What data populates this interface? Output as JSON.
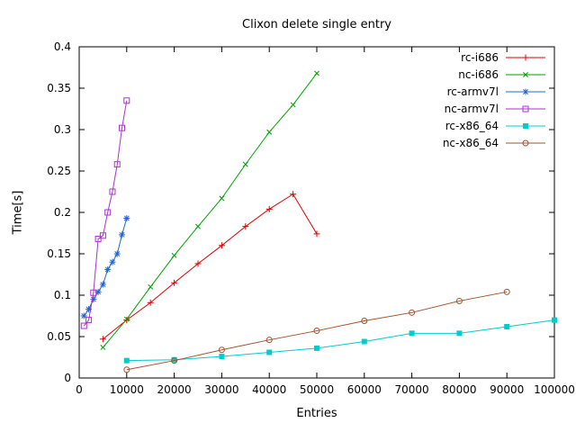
{
  "chart_data": {
    "type": "line",
    "title": "Clixon delete single entry",
    "xlabel": "Entries",
    "ylabel": "Time[s]",
    "xlim": [
      0,
      100000
    ],
    "ylim": [
      0,
      0.4
    ],
    "xticks": [
      0,
      10000,
      20000,
      30000,
      40000,
      50000,
      60000,
      70000,
      80000,
      90000,
      100000
    ],
    "yticks": [
      0,
      0.05,
      0.1,
      0.15,
      0.2,
      0.25,
      0.3,
      0.35,
      0.4
    ],
    "grid": false,
    "legend_position": "top-right",
    "series": [
      {
        "name": "rc-i686",
        "color": "#dd0000",
        "marker": "plus",
        "x": [
          5000,
          10000,
          15000,
          20000,
          25000,
          30000,
          35000,
          40000,
          45000,
          50000
        ],
        "y": [
          0.047,
          0.07,
          0.091,
          0.115,
          0.138,
          0.16,
          0.183,
          0.204,
          0.222,
          0.174
        ]
      },
      {
        "name": "nc-i686",
        "color": "#00a000",
        "marker": "cross",
        "x": [
          5000,
          10000,
          15000,
          20000,
          25000,
          30000,
          35000,
          40000,
          45000,
          50000
        ],
        "y": [
          0.037,
          0.071,
          0.11,
          0.148,
          0.183,
          0.217,
          0.258,
          0.297,
          0.33,
          0.368
        ]
      },
      {
        "name": "rc-armv7l",
        "color": "#2266cc",
        "marker": "asterisk",
        "x": [
          1000,
          2000,
          3000,
          4000,
          5000,
          6000,
          7000,
          8000,
          9000,
          10000
        ],
        "y": [
          0.075,
          0.083,
          0.095,
          0.104,
          0.113,
          0.131,
          0.14,
          0.15,
          0.173,
          0.193
        ]
      },
      {
        "name": "nc-armv7l",
        "color": "#aa33cc",
        "marker": "square-open",
        "x": [
          1000,
          2000,
          3000,
          4000,
          5000,
          6000,
          7000,
          8000,
          9000,
          10000
        ],
        "y": [
          0.063,
          0.07,
          0.103,
          0.168,
          0.172,
          0.2,
          0.225,
          0.258,
          0.302,
          0.335
        ]
      },
      {
        "name": "rc-x86_64",
        "color": "#00cccc",
        "marker": "square-filled",
        "x": [
          10000,
          20000,
          30000,
          40000,
          50000,
          60000,
          70000,
          80000,
          90000,
          100000
        ],
        "y": [
          0.021,
          0.022,
          0.026,
          0.031,
          0.036,
          0.044,
          0.054,
          0.054,
          0.062,
          0.07
        ]
      },
      {
        "name": "nc-x86_64",
        "color": "#a0522d",
        "marker": "circle-open",
        "x": [
          10000,
          20000,
          30000,
          40000,
          50000,
          60000,
          70000,
          80000,
          90000
        ],
        "y": [
          0.01,
          0.021,
          0.034,
          0.046,
          0.057,
          0.069,
          0.079,
          0.093,
          0.104
        ]
      }
    ]
  }
}
